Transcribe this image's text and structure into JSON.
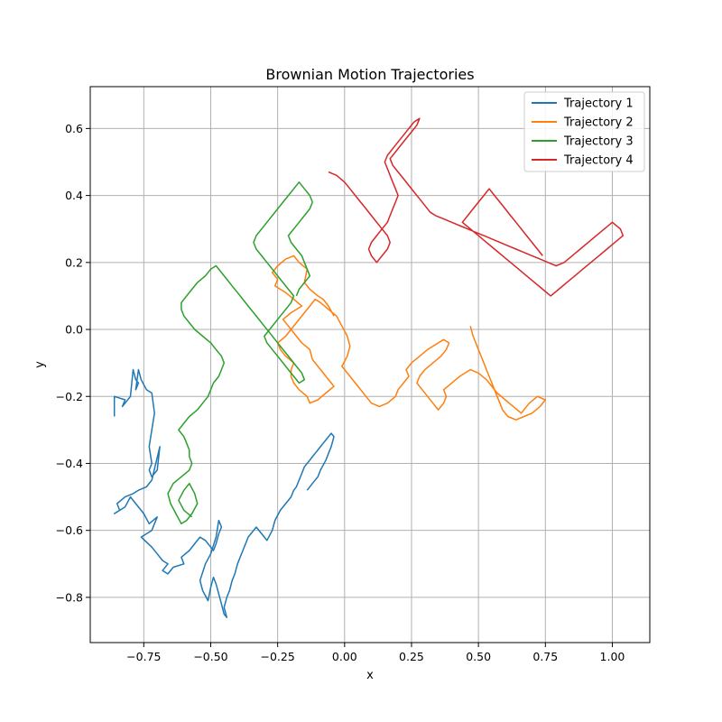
{
  "chart_data": {
    "type": "line",
    "title": "Brownian Motion Trajectories",
    "xlabel": "x",
    "ylabel": "y",
    "xlim": [
      -0.95,
      1.14
    ],
    "ylim": [
      -0.935,
      0.725
    ],
    "xticks": [
      -0.75,
      -0.5,
      -0.25,
      0.0,
      0.25,
      0.5,
      0.75,
      1.0
    ],
    "xtick_labels": [
      "−0.75",
      "−0.50",
      "−0.25",
      "0.00",
      "0.25",
      "0.50",
      "0.75",
      "1.00"
    ],
    "yticks": [
      -0.8,
      -0.6,
      -0.4,
      -0.2,
      0.0,
      0.2,
      0.4,
      0.6
    ],
    "ytick_labels": [
      "−0.8",
      "−0.6",
      "−0.4",
      "−0.2",
      "0.0",
      "0.2",
      "0.4",
      "0.6"
    ],
    "grid": true,
    "legend_position": "top-right",
    "series": [
      {
        "name": "Trajectory 1",
        "color": "#1f77b4",
        "x": [
          -0.86,
          -0.86,
          -0.82,
          -0.83,
          -0.8,
          -0.79,
          -0.78,
          -0.77,
          -0.78,
          -0.77,
          -0.76,
          -0.74,
          -0.72,
          -0.71,
          -0.72,
          -0.73,
          -0.72,
          -0.73,
          -0.72,
          -0.7,
          -0.69,
          -0.72,
          -0.74,
          -0.77,
          -0.79,
          -0.82,
          -0.85,
          -0.84,
          -0.86,
          -0.82,
          -0.8,
          -0.78,
          -0.75,
          -0.73,
          -0.7,
          -0.72,
          -0.76,
          -0.72,
          -0.7,
          -0.68,
          -0.66,
          -0.68,
          -0.66,
          -0.64,
          -0.6,
          -0.61,
          -0.58,
          -0.56,
          -0.54,
          -0.52,
          -0.5,
          -0.49,
          -0.48,
          -0.47,
          -0.46,
          -0.47,
          -0.48,
          -0.5,
          -0.52,
          -0.54,
          -0.53,
          -0.51,
          -0.5,
          -0.49,
          -0.48,
          -0.47,
          -0.46,
          -0.45,
          -0.44,
          -0.45,
          -0.44,
          -0.43,
          -0.42,
          -0.41,
          -0.4,
          -0.39,
          -0.38,
          -0.37,
          -0.36,
          -0.35,
          -0.34,
          -0.33,
          -0.31,
          -0.29,
          -0.27,
          -0.26,
          -0.24,
          -0.22,
          -0.2,
          -0.19,
          -0.18,
          -0.17,
          -0.16,
          -0.15,
          -0.14,
          -0.13,
          -0.12,
          -0.11,
          -0.1,
          -0.09,
          -0.08,
          -0.07,
          -0.06,
          -0.05,
          -0.04,
          -0.05,
          -0.06,
          -0.07,
          -0.09,
          -0.1,
          -0.12,
          -0.14
        ],
        "y": [
          -0.26,
          -0.2,
          -0.21,
          -0.23,
          -0.2,
          -0.12,
          -0.15,
          -0.16,
          -0.18,
          -0.12,
          -0.15,
          -0.18,
          -0.19,
          -0.25,
          -0.3,
          -0.35,
          -0.4,
          -0.42,
          -0.44,
          -0.42,
          -0.35,
          -0.45,
          -0.47,
          -0.48,
          -0.49,
          -0.5,
          -0.52,
          -0.54,
          -0.55,
          -0.53,
          -0.5,
          -0.52,
          -0.55,
          -0.58,
          -0.56,
          -0.6,
          -0.62,
          -0.65,
          -0.67,
          -0.69,
          -0.7,
          -0.72,
          -0.73,
          -0.71,
          -0.7,
          -0.68,
          -0.66,
          -0.64,
          -0.62,
          -0.63,
          -0.65,
          -0.66,
          -0.64,
          -0.61,
          -0.59,
          -0.57,
          -0.62,
          -0.67,
          -0.7,
          -0.75,
          -0.78,
          -0.81,
          -0.77,
          -0.74,
          -0.76,
          -0.79,
          -0.82,
          -0.85,
          -0.86,
          -0.83,
          -0.8,
          -0.78,
          -0.75,
          -0.73,
          -0.7,
          -0.68,
          -0.66,
          -0.64,
          -0.62,
          -0.61,
          -0.6,
          -0.59,
          -0.61,
          -0.63,
          -0.6,
          -0.57,
          -0.54,
          -0.52,
          -0.5,
          -0.48,
          -0.47,
          -0.45,
          -0.43,
          -0.41,
          -0.4,
          -0.39,
          -0.38,
          -0.37,
          -0.36,
          -0.35,
          -0.34,
          -0.33,
          -0.32,
          -0.31,
          -0.32,
          -0.35,
          -0.37,
          -0.39,
          -0.42,
          -0.44,
          -0.46,
          -0.48
        ],
        "x2": [
          -0.86,
          -0.86,
          -0.84,
          -0.81,
          -0.79,
          -0.79,
          -0.76,
          -0.74,
          -0.76,
          -0.77,
          -0.74,
          -0.73,
          -0.74,
          -0.72,
          -0.73,
          -0.72,
          -0.71,
          -0.69,
          -0.69,
          -0.73,
          -0.75,
          -0.78,
          -0.8,
          -0.84,
          -0.86,
          -0.82,
          -0.79,
          -0.75,
          -0.73,
          -0.71,
          -0.73,
          -0.72,
          -0.68,
          -0.68,
          -0.69,
          -0.68,
          -0.62,
          -0.65,
          -0.63,
          -0.65,
          -0.58,
          -0.61,
          -0.55,
          -0.53,
          -0.55,
          -0.51,
          -0.49,
          -0.48,
          -0.49,
          -0.5,
          -0.47,
          -0.46,
          -0.48,
          -0.47,
          -0.46,
          -0.5,
          -0.48,
          -0.52,
          -0.55,
          -0.52,
          -0.49,
          -0.47,
          -0.46,
          -0.45,
          -0.45,
          -0.48,
          -0.44,
          -0.45,
          -0.43,
          -0.45,
          -0.4,
          -0.38,
          -0.36,
          -0.39,
          -0.38,
          -0.37,
          -0.36,
          -0.33,
          -0.31,
          -0.31,
          -0.33,
          -0.29,
          -0.27,
          -0.24,
          -0.23,
          -0.22,
          -0.22,
          -0.21,
          -0.19,
          -0.17,
          -0.15,
          -0.14,
          -0.13,
          -0.12,
          -0.11,
          -0.1,
          -0.09,
          -0.08,
          -0.06,
          -0.05,
          -0.04,
          -0.07,
          -0.09,
          -0.11,
          -0.12,
          -0.15,
          -0.17
        ]
      },
      {
        "name": "Trajectory 2",
        "color": "#ff7f0e",
        "x": [
          -0.04,
          -0.06,
          -0.08,
          -0.1,
          -0.13,
          -0.15,
          -0.14,
          -0.17,
          -0.19,
          -0.22,
          -0.25,
          -0.27,
          -0.25,
          -0.26,
          -0.22,
          -0.19,
          -0.16,
          -0.2,
          -0.23,
          -0.21,
          -0.18,
          -0.16,
          -0.13,
          -0.12,
          -0.1,
          -0.07,
          -0.04,
          -0.07,
          -0.1,
          -0.13,
          -0.14,
          -0.17,
          -0.19,
          -0.2,
          -0.2,
          -0.19,
          -0.22,
          -0.24,
          -0.25,
          -0.22,
          -0.2,
          -0.17,
          -0.15,
          -0.13,
          -0.11,
          -0.09,
          -0.06,
          -0.03,
          -0.01,
          0.01,
          0.02,
          0.01,
          -0.01,
          0.02,
          0.05,
          0.08,
          0.1,
          0.13,
          0.16,
          0.19,
          0.2,
          0.22,
          0.24,
          0.23,
          0.25,
          0.28,
          0.31,
          0.33,
          0.35,
          0.37,
          0.39,
          0.38,
          0.36,
          0.33,
          0.3,
          0.28,
          0.27,
          0.29,
          0.31,
          0.33,
          0.35,
          0.37,
          0.38,
          0.37,
          0.4,
          0.43,
          0.45,
          0.47,
          0.5,
          0.53,
          0.55,
          0.57,
          0.6,
          0.63,
          0.66,
          0.69,
          0.72,
          0.75,
          0.73,
          0.7,
          0.67,
          0.64,
          0.61,
          0.59,
          0.58,
          0.57,
          0.56,
          0.55,
          0.54,
          0.53,
          0.52,
          0.51,
          0.5,
          0.49,
          0.48,
          0.47
        ],
        "y": [
          0.04,
          0.07,
          0.09,
          0.1,
          0.12,
          0.14,
          0.18,
          0.2,
          0.22,
          0.21,
          0.19,
          0.17,
          0.15,
          0.13,
          0.11,
          0.09,
          0.07,
          0.05,
          0.03,
          0.01,
          -0.02,
          -0.04,
          -0.06,
          -0.09,
          -0.11,
          -0.14,
          -0.17,
          -0.19,
          -0.21,
          -0.22,
          -0.2,
          -0.18,
          -0.16,
          -0.14,
          -0.12,
          -0.1,
          -0.08,
          -0.06,
          -0.04,
          -0.02,
          0.0,
          0.03,
          0.05,
          0.07,
          0.09,
          0.08,
          0.06,
          0.04,
          0.01,
          -0.02,
          -0.05,
          -0.08,
          -0.11,
          -0.14,
          -0.17,
          -0.2,
          -0.22,
          -0.23,
          -0.22,
          -0.2,
          -0.18,
          -0.16,
          -0.14,
          -0.12,
          -0.1,
          -0.08,
          -0.06,
          -0.05,
          -0.04,
          -0.03,
          -0.04,
          -0.06,
          -0.08,
          -0.1,
          -0.12,
          -0.14,
          -0.16,
          -0.18,
          -0.2,
          -0.22,
          -0.24,
          -0.22,
          -0.2,
          -0.18,
          -0.16,
          -0.14,
          -0.13,
          -0.12,
          -0.13,
          -0.15,
          -0.17,
          -0.19,
          -0.21,
          -0.23,
          -0.25,
          -0.22,
          -0.2,
          -0.21,
          -0.23,
          -0.25,
          -0.26,
          -0.27,
          -0.26,
          -0.24,
          -0.22,
          -0.2,
          -0.18,
          -0.16,
          -0.14,
          -0.12,
          -0.1,
          -0.08,
          -0.06,
          -0.04,
          -0.02,
          0.01
        ]
      },
      {
        "name": "Trajectory 3",
        "color": "#2ca02c",
        "x": [
          -0.57,
          -0.6,
          -0.62,
          -0.6,
          -0.58,
          -0.56,
          -0.55,
          -0.57,
          -0.59,
          -0.61,
          -0.63,
          -0.65,
          -0.66,
          -0.64,
          -0.61,
          -0.58,
          -0.57,
          -0.58,
          -0.58,
          -0.59,
          -0.6,
          -0.62,
          -0.6,
          -0.58,
          -0.55,
          -0.53,
          -0.51,
          -0.5,
          -0.49,
          -0.47,
          -0.46,
          -0.45,
          -0.46,
          -0.48,
          -0.5,
          -0.53,
          -0.56,
          -0.58,
          -0.6,
          -0.61,
          -0.61,
          -0.59,
          -0.57,
          -0.55,
          -0.52,
          -0.5,
          -0.48,
          -0.46,
          -0.44,
          -0.42,
          -0.4,
          -0.38,
          -0.36,
          -0.34,
          -0.32,
          -0.3,
          -0.28,
          -0.26,
          -0.24,
          -0.22,
          -0.2,
          -0.18,
          -0.16,
          -0.15,
          -0.17,
          -0.19,
          -0.21,
          -0.23,
          -0.25,
          -0.27,
          -0.29,
          -0.3,
          -0.28,
          -0.26,
          -0.24,
          -0.22,
          -0.2,
          -0.19,
          -0.21,
          -0.23,
          -0.25,
          -0.27,
          -0.29,
          -0.31,
          -0.33,
          -0.34,
          -0.33,
          -0.31,
          -0.29,
          -0.27,
          -0.25,
          -0.23,
          -0.21,
          -0.19,
          -0.17,
          -0.15,
          -0.13,
          -0.12,
          -0.13,
          -0.15,
          -0.17,
          -0.19,
          -0.21,
          -0.2,
          -0.18,
          -0.16,
          -0.15,
          -0.14,
          -0.13,
          -0.15,
          -0.17,
          -0.18
        ],
        "y": [
          -0.56,
          -0.54,
          -0.51,
          -0.48,
          -0.46,
          -0.49,
          -0.52,
          -0.55,
          -0.57,
          -0.58,
          -0.55,
          -0.52,
          -0.49,
          -0.46,
          -0.44,
          -0.42,
          -0.4,
          -0.38,
          -0.36,
          -0.34,
          -0.32,
          -0.3,
          -0.28,
          -0.26,
          -0.24,
          -0.22,
          -0.2,
          -0.18,
          -0.16,
          -0.14,
          -0.12,
          -0.1,
          -0.08,
          -0.06,
          -0.04,
          -0.02,
          0.0,
          0.02,
          0.04,
          0.06,
          0.08,
          0.1,
          0.12,
          0.14,
          0.16,
          0.18,
          0.19,
          0.17,
          0.15,
          0.13,
          0.11,
          0.09,
          0.07,
          0.05,
          0.03,
          0.01,
          -0.01,
          -0.03,
          -0.05,
          -0.07,
          -0.09,
          -0.11,
          -0.13,
          -0.15,
          -0.16,
          -0.14,
          -0.12,
          -0.1,
          -0.08,
          -0.06,
          -0.04,
          -0.02,
          0.0,
          0.02,
          0.04,
          0.06,
          0.08,
          0.1,
          0.12,
          0.14,
          0.16,
          0.18,
          0.2,
          0.22,
          0.24,
          0.26,
          0.28,
          0.3,
          0.32,
          0.34,
          0.36,
          0.38,
          0.4,
          0.42,
          0.44,
          0.42,
          0.4,
          0.38,
          0.36,
          0.34,
          0.32,
          0.3,
          0.28,
          0.26,
          0.24,
          0.22,
          0.2,
          0.18,
          0.16,
          0.14,
          0.12,
          0.1
        ]
      },
      {
        "name": "Trajectory 4",
        "color": "#d62728",
        "x": [
          -0.06,
          -0.03,
          0.0,
          0.02,
          0.04,
          0.06,
          0.08,
          0.1,
          0.12,
          0.14,
          0.16,
          0.17,
          0.16,
          0.14,
          0.12,
          0.1,
          0.09,
          0.1,
          0.12,
          0.14,
          0.16,
          0.17,
          0.18,
          0.19,
          0.2,
          0.19,
          0.18,
          0.17,
          0.16,
          0.15,
          0.16,
          0.18,
          0.2,
          0.22,
          0.24,
          0.26,
          0.28,
          0.27,
          0.25,
          0.23,
          0.21,
          0.19,
          0.17,
          0.18,
          0.2,
          0.22,
          0.24,
          0.26,
          0.28,
          0.3,
          0.32,
          0.34,
          0.37,
          0.4,
          0.43,
          0.46,
          0.49,
          0.52,
          0.55,
          0.58,
          0.61,
          0.64,
          0.67,
          0.7,
          0.73,
          0.76,
          0.79,
          0.82,
          0.85,
          0.88,
          0.91,
          0.94,
          0.97,
          1.0,
          1.03,
          1.04,
          1.01,
          0.98,
          0.95,
          0.92,
          0.89,
          0.86,
          0.83,
          0.8,
          0.77,
          0.74,
          0.71,
          0.68,
          0.65,
          0.62,
          0.59,
          0.56,
          0.53,
          0.5,
          0.47,
          0.44,
          0.46,
          0.48,
          0.5,
          0.52,
          0.54,
          0.56,
          0.58,
          0.6,
          0.62,
          0.64,
          0.66,
          0.68,
          0.7,
          0.72,
          0.74
        ],
        "y": [
          0.47,
          0.46,
          0.44,
          0.42,
          0.4,
          0.38,
          0.36,
          0.34,
          0.32,
          0.3,
          0.28,
          0.26,
          0.24,
          0.22,
          0.2,
          0.22,
          0.24,
          0.26,
          0.28,
          0.3,
          0.32,
          0.34,
          0.36,
          0.38,
          0.4,
          0.42,
          0.44,
          0.46,
          0.48,
          0.5,
          0.52,
          0.54,
          0.56,
          0.58,
          0.6,
          0.62,
          0.63,
          0.61,
          0.59,
          0.57,
          0.55,
          0.53,
          0.51,
          0.49,
          0.47,
          0.45,
          0.43,
          0.41,
          0.39,
          0.37,
          0.35,
          0.34,
          0.33,
          0.32,
          0.31,
          0.3,
          0.29,
          0.28,
          0.27,
          0.26,
          0.25,
          0.24,
          0.23,
          0.22,
          0.21,
          0.2,
          0.19,
          0.2,
          0.22,
          0.24,
          0.26,
          0.28,
          0.3,
          0.32,
          0.3,
          0.28,
          0.26,
          0.24,
          0.22,
          0.2,
          0.18,
          0.16,
          0.14,
          0.12,
          0.1,
          0.12,
          0.14,
          0.16,
          0.18,
          0.2,
          0.22,
          0.24,
          0.26,
          0.28,
          0.3,
          0.32,
          0.34,
          0.36,
          0.38,
          0.4,
          0.42,
          0.4,
          0.38,
          0.36,
          0.34,
          0.32,
          0.3,
          0.28,
          0.26,
          0.24,
          0.22
        ]
      }
    ]
  }
}
